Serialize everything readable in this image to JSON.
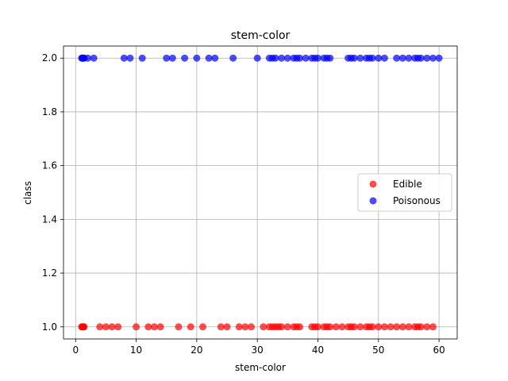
{
  "chart_data": {
    "type": "scatter",
    "title": "stem-color",
    "xlabel": "stem-color",
    "ylabel": "class",
    "xlim": [
      -2,
      63
    ],
    "ylim": [
      0.955,
      2.045
    ],
    "xticks": [
      "0",
      "10",
      "20",
      "30",
      "40",
      "50",
      "60"
    ],
    "yticks": [
      "1.0",
      "1.2",
      "1.4",
      "1.6",
      "1.8",
      "2.0"
    ],
    "grid": true,
    "legend_position": "center-right",
    "series": [
      {
        "name": "Edible",
        "color": "#ff0000",
        "y": 1.0,
        "x": [
          1,
          1.1,
          1.2,
          1.3,
          1.4,
          4,
          5,
          6,
          7,
          10,
          12,
          13,
          14,
          17,
          19,
          21,
          24,
          25,
          27,
          28,
          29,
          31,
          32,
          32.5,
          33,
          33.5,
          34,
          35,
          36,
          36.5,
          37,
          39,
          39.5,
          40,
          41,
          41.5,
          42,
          43,
          44,
          45,
          45.5,
          46,
          47,
          48,
          48.5,
          49,
          50,
          51,
          52,
          53,
          54,
          55,
          56,
          56.5,
          57,
          58,
          59
        ]
      },
      {
        "name": "Poisonous",
        "color": "#0000ff",
        "y": 2.0,
        "x": [
          1,
          1.1,
          1.2,
          1.3,
          1.4,
          2,
          3,
          8,
          9,
          11,
          15,
          16,
          18,
          20,
          22,
          23,
          26,
          30,
          32,
          32.5,
          33,
          34,
          35,
          36,
          36.5,
          37,
          38,
          39,
          39.5,
          40,
          41,
          41.5,
          42,
          45,
          45.5,
          46,
          47,
          48,
          48.5,
          49,
          50,
          51,
          53,
          54,
          55,
          56,
          56.5,
          57,
          58,
          59,
          60
        ]
      }
    ]
  }
}
